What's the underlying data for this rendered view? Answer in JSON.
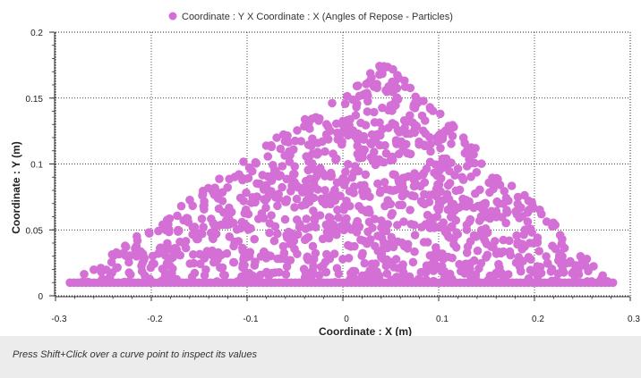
{
  "chart_data": {
    "type": "scatter",
    "series": [
      {
        "name": "Coordinate : Y X Coordinate : X (Angles of Repose - Particles)",
        "color": "#d46fd6",
        "marker": "circle",
        "x": [],
        "y": []
      }
    ],
    "xlabel": "Coordinate : X (m)",
    "ylabel": "Coordinate : Y (m)",
    "xlim": [
      -0.3,
      0.3
    ],
    "ylim": [
      0,
      0.2
    ],
    "xticks": [
      "-0.3",
      "-0.2",
      "-0.1",
      "0",
      "0.1",
      "0.2",
      "0.3"
    ],
    "yticks": [
      "0",
      "0.05",
      "0.1",
      "0.15",
      "0.2"
    ],
    "grid": true,
    "legend_position": "top-center",
    "distribution": {
      "shape": "triangular pile of particles",
      "base_y": 0.01,
      "base_x_range": [
        -0.285,
        0.285
      ],
      "peak": {
        "x": 0.045,
        "y": 0.178
      },
      "point_count": 1300
    }
  },
  "status_bar": {
    "hint": "Press Shift+Click over a curve point to inspect its values"
  }
}
